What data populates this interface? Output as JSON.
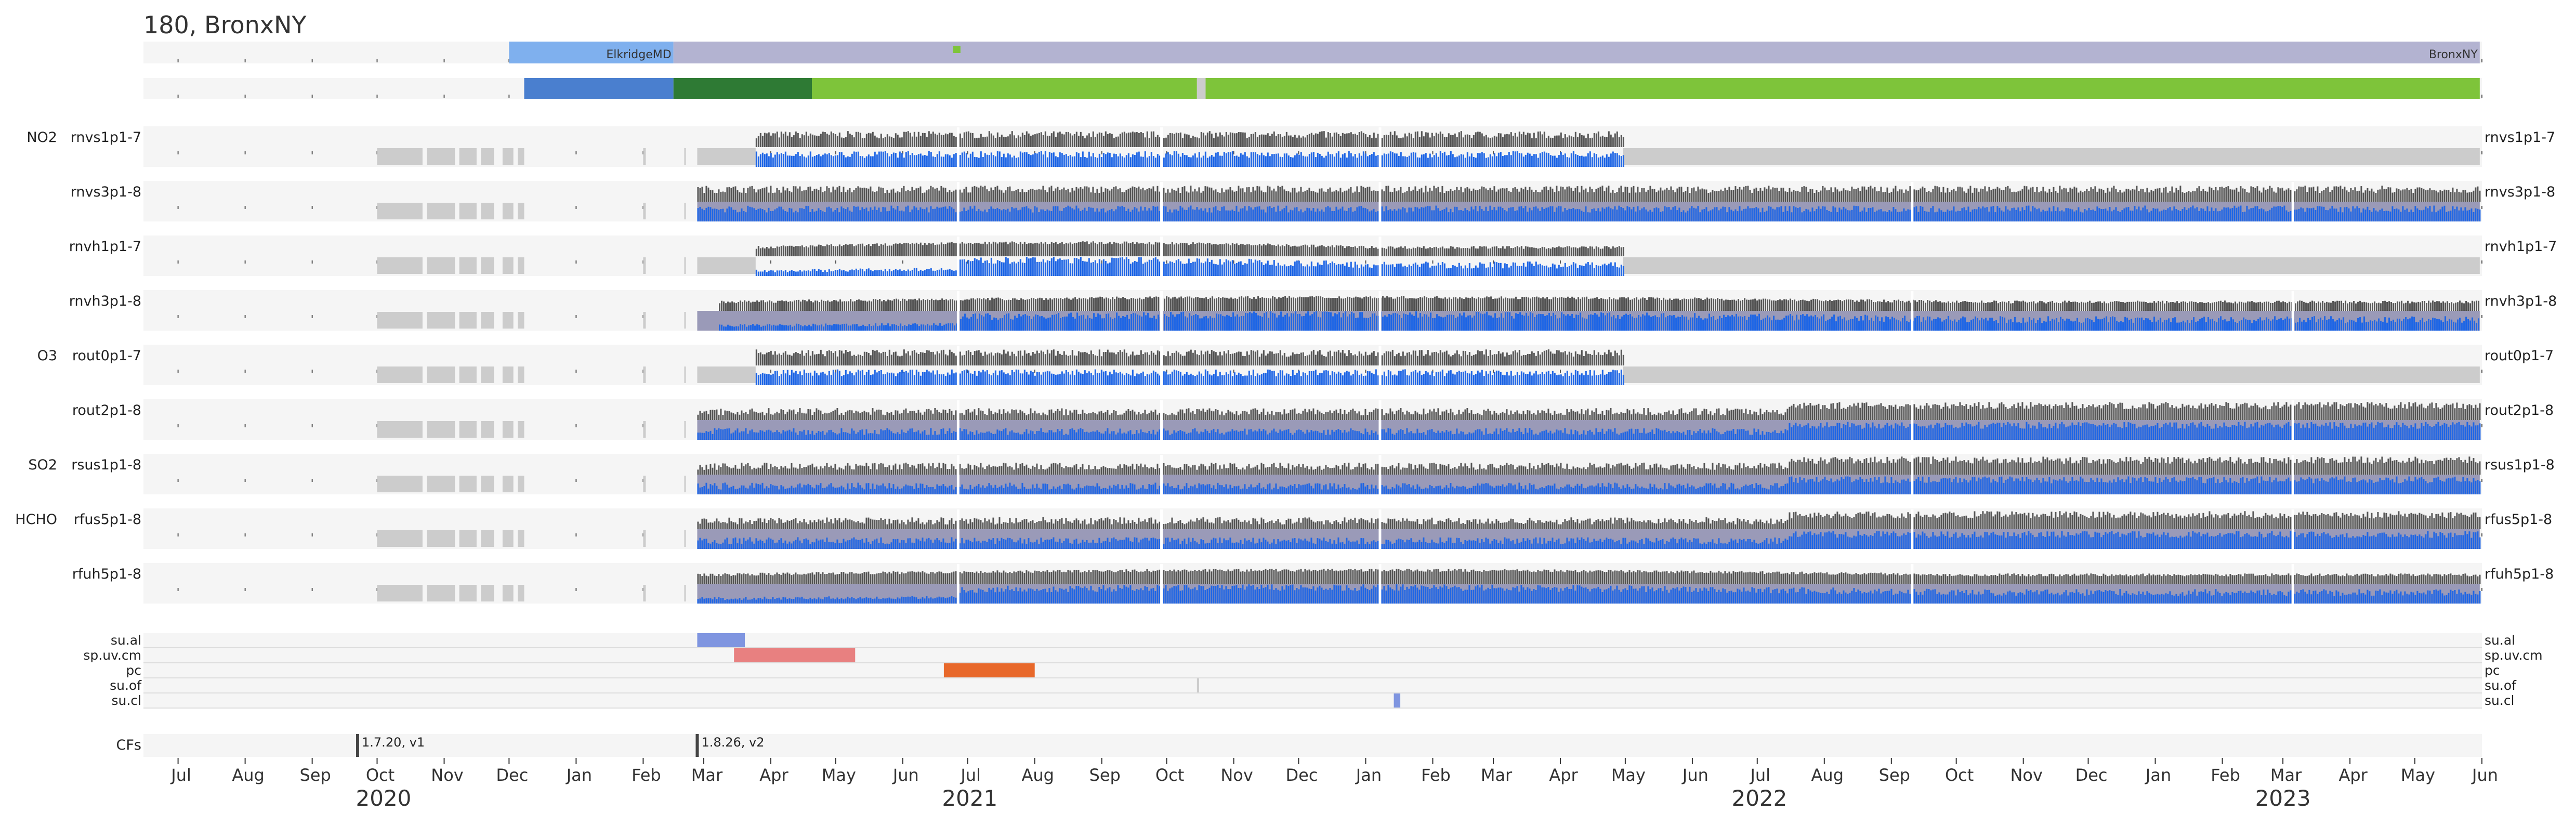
{
  "title": "180, BronxNY",
  "colors": {
    "bg_band": "#f5f5f5",
    "unavail": "#cccccc",
    "l1": "#555555",
    "l2": "#1f66e5",
    "l2_gap": "#9a9ab8",
    "loc_a": "#7fb0ee",
    "loc_b": "#b3b3d1",
    "proc_a": "#4a7fcf",
    "proc_b": "#2e7a34",
    "proc_c": "#7ec43a",
    "su_al": "#7f95e0",
    "sp_uv_cm": "#e88080",
    "pc": "#e8682a",
    "su_cl": "#7f95e0",
    "cf": "#444444"
  },
  "chart_data": {
    "type": "timeline",
    "x_axis": {
      "start": "2020-06-15",
      "end": "2023-06-01",
      "month_labels": [
        "Jul",
        "Aug",
        "Sep",
        "Oct",
        "Nov",
        "Dec",
        "Jan",
        "Feb",
        "Mar",
        "Apr",
        "May",
        "Jun",
        "Jul",
        "Aug",
        "Sep",
        "Oct",
        "Nov",
        "Dec",
        "Jan",
        "Feb",
        "Mar",
        "Apr",
        "May",
        "Jun",
        "Jul",
        "Aug",
        "Sep",
        "Oct",
        "Nov",
        "Dec",
        "Jan",
        "Feb",
        "Mar",
        "Apr",
        "May",
        "Jun"
      ],
      "year_labels": [
        "2020",
        "2021",
        "2022",
        "2023"
      ]
    },
    "locations": [
      {
        "name": "ElkridgeMD",
        "start": "2020-12-01",
        "end": "2021-02-15"
      },
      {
        "name": "BronxNY",
        "start": "2021-02-15",
        "end": "2023-05-31"
      }
    ],
    "location_marker": {
      "date": "2021-06-26"
    },
    "processing": [
      {
        "start": "2020-12-08",
        "end": "2021-02-15",
        "color_key": "proc_a"
      },
      {
        "start": "2021-02-15",
        "end": "2021-04-20",
        "color_key": "proc_b"
      },
      {
        "start": "2021-04-20",
        "end": "2021-10-15",
        "color_key": "proc_c"
      },
      {
        "start": "2021-10-15",
        "end": "2021-10-19",
        "color_key": "unavail"
      },
      {
        "start": "2021-10-19",
        "end": "2023-05-31",
        "color_key": "proc_c"
      }
    ],
    "products": [
      {
        "group": "NO2",
        "name": "rnvs1p1-7",
        "right": "rnvs1p1-7",
        "l1_start": "2021-03-25",
        "l1_end": "2022-04-30",
        "profile": "flat"
      },
      {
        "group": "",
        "name": "rnvs3p1-8",
        "right": "rnvs3p1-8",
        "l1_start": "2021-02-26",
        "l1_end": "2023-05-31",
        "profile": "flat"
      },
      {
        "group": "",
        "name": "rnvh1p1-7",
        "right": "rnvh1p1-7",
        "l1_start": "2021-03-25",
        "l1_end": "2022-04-30",
        "profile": "hump"
      },
      {
        "group": "",
        "name": "rnvh3p1-8",
        "right": "rnvh3p1-8",
        "l1_start": "2021-03-08",
        "l1_end": "2023-05-31",
        "profile": "hump"
      },
      {
        "group": "O3",
        "name": "rout0p1-7",
        "right": "rout0p1-7",
        "l1_start": "2021-03-25",
        "l1_end": "2022-04-30",
        "profile": "flat"
      },
      {
        "group": "",
        "name": "rout2p1-8",
        "right": "rout2p1-8",
        "l1_start": "2021-02-26",
        "l1_end": "2023-05-31",
        "profile": "late"
      },
      {
        "group": "SO2",
        "name": "rsus1p1-8",
        "right": "rsus1p1-8",
        "l1_start": "2021-02-26",
        "l1_end": "2023-05-31",
        "profile": "late"
      },
      {
        "group": "HCHO",
        "name": "rfus5p1-8",
        "right": "rfus5p1-8",
        "l1_start": "2021-02-26",
        "l1_end": "2023-05-31",
        "profile": "late"
      },
      {
        "group": "",
        "name": "rfuh5p1-8",
        "right": "rfuh5p1-8",
        "l1_start": "2021-02-26",
        "l1_end": "2023-05-31",
        "profile": "hump"
      }
    ],
    "status_rows": [
      {
        "name": "su.al",
        "intervals": [
          {
            "start": "2021-02-26",
            "end": "2021-03-20",
            "color_key": "su_al"
          }
        ]
      },
      {
        "name": "sp.uv.cm",
        "intervals": [
          {
            "start": "2021-03-15",
            "end": "2021-05-10",
            "color_key": "sp_uv_cm"
          }
        ]
      },
      {
        "name": "pc",
        "intervals": [
          {
            "start": "2021-06-20",
            "end": "2021-08-01",
            "color_key": "pc"
          }
        ]
      },
      {
        "name": "su.of",
        "intervals": [
          {
            "start": "2021-10-15",
            "end": "2021-10-16",
            "color_key": "unavail"
          }
        ]
      },
      {
        "name": "su.cl",
        "intervals": [
          {
            "start": "2022-01-14",
            "end": "2022-01-17",
            "color_key": "su_cl"
          }
        ]
      }
    ],
    "cfs_label": "CFs",
    "cfs": [
      {
        "date": "2020-09-22",
        "label": "1.7.20, v1"
      },
      {
        "date": "2021-02-26",
        "label": "1.8.26, v2"
      }
    ]
  }
}
